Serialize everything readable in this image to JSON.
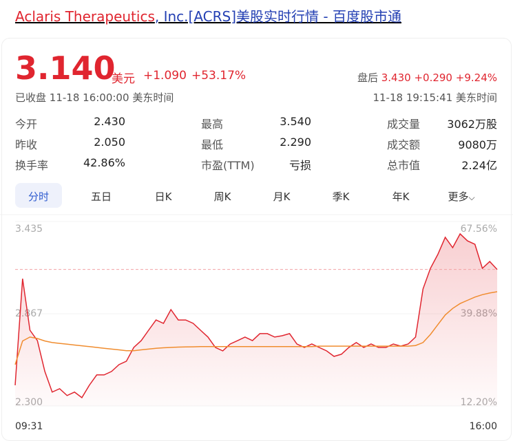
{
  "header": {
    "title_name": "Aclaris Therapeutics",
    "title_rest": ", Inc.[ACRS]美股实时行情 - 百度股市通"
  },
  "quote": {
    "price": "3.140",
    "currency": "美元",
    "change": "+1.090",
    "change_pct": "+53.17%",
    "status": "已收盘",
    "time": "11-18 16:00:00",
    "tz": "美东时间",
    "after_label": "盘后",
    "after_price": "3.430",
    "after_change": "+0.290",
    "after_pct": "+9.24%",
    "after_time": "11-18 19:15:41",
    "after_tz": "美东时间"
  },
  "stats": [
    [
      [
        "今开",
        "2.430"
      ],
      [
        "最高",
        "3.540"
      ],
      [
        "成交量",
        "3062万股"
      ]
    ],
    [
      [
        "昨收",
        "2.050"
      ],
      [
        "最低",
        "2.290"
      ],
      [
        "成交额",
        "9080万"
      ]
    ],
    [
      [
        "换手率",
        "42.86%"
      ],
      [
        "市盈(TTM)",
        "亏损"
      ],
      [
        "总市值",
        "2.24亿"
      ]
    ]
  ],
  "tabs": [
    "分时",
    "五日",
    "日K",
    "周K",
    "月K",
    "季K",
    "年K",
    "更多"
  ],
  "chart_data": {
    "type": "line",
    "categories": [
      "09:31",
      null,
      null,
      null,
      null,
      null,
      null,
      null,
      null,
      null,
      null,
      null,
      null,
      null,
      null,
      null,
      null,
      null,
      null,
      null,
      null,
      null,
      null,
      null,
      null,
      null,
      null,
      null,
      null,
      null,
      null,
      null,
      null,
      null,
      null,
      null,
      null,
      null,
      null,
      null,
      null,
      null,
      null,
      null,
      null,
      null,
      null,
      null,
      null,
      null,
      null,
      null,
      null,
      null,
      null,
      null,
      null,
      null,
      null,
      null,
      null,
      null,
      null,
      null,
      null,
      "16:00"
    ],
    "series": [
      {
        "color": "#e0252f",
        "values": [
          2.427,
          3.083,
          2.766,
          2.702,
          2.512,
          2.385,
          2.406,
          2.364,
          2.385,
          2.351,
          2.427,
          2.491,
          2.491,
          2.512,
          2.554,
          2.575,
          2.66,
          2.702,
          2.766,
          2.829,
          2.808,
          2.893,
          2.829,
          2.829,
          2.808,
          2.766,
          2.724,
          2.66,
          2.639,
          2.681,
          2.702,
          2.724,
          2.702,
          2.745,
          2.745,
          2.724,
          2.732,
          2.745,
          2.681,
          2.66,
          2.681,
          2.66,
          2.639,
          2.605,
          2.618,
          2.66,
          2.69,
          2.66,
          2.681,
          2.66,
          2.66,
          2.681,
          2.668,
          2.681,
          2.724,
          3.02,
          3.147,
          3.232,
          3.338,
          3.274,
          3.359,
          3.316,
          3.295,
          3.147,
          3.189,
          3.14
        ]
      },
      {
        "color": "#f08c2e",
        "values": [
          2.554,
          2.7,
          2.724,
          2.715,
          2.7,
          2.69,
          2.685,
          2.68,
          2.675,
          2.67,
          2.665,
          2.66,
          2.655,
          2.65,
          2.645,
          2.64,
          2.64,
          2.645,
          2.65,
          2.655,
          2.658,
          2.66,
          2.662,
          2.663,
          2.664,
          2.665,
          2.665,
          2.665,
          2.665,
          2.665,
          2.665,
          2.665,
          2.665,
          2.665,
          2.665,
          2.665,
          2.665,
          2.665,
          2.665,
          2.665,
          2.665,
          2.668,
          2.668,
          2.668,
          2.668,
          2.668,
          2.668,
          2.668,
          2.668,
          2.668,
          2.668,
          2.668,
          2.668,
          2.668,
          2.672,
          2.69,
          2.74,
          2.8,
          2.86,
          2.9,
          2.93,
          2.95,
          2.97,
          2.985,
          2.995,
          3.003
        ]
      }
    ],
    "ylim": [
      2.3,
      3.435
    ],
    "yticks": [
      3.435,
      2.867,
      {
        "value": 2.3,
        "label": "2.300"
      }
    ],
    "y2lim": [
      12.2,
      67.56
    ],
    "y2ticks": [
      {
        "value": 67.56,
        "label": "67.56%"
      },
      {
        "value": 39.88,
        "label": "39.88%"
      },
      {
        "value": 12.2,
        "label": "12.20%"
      }
    ],
    "grid": true
  }
}
